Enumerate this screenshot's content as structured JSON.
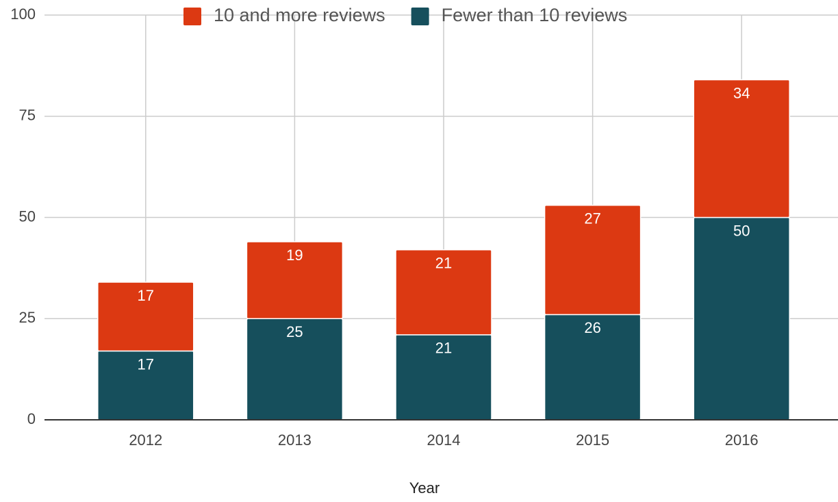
{
  "chart_data": {
    "type": "stacked_bar",
    "categories": [
      "2012",
      "2013",
      "2014",
      "2015",
      "2016"
    ],
    "series": [
      {
        "name": "10 and more reviews",
        "color": "#dc3912",
        "values": [
          17,
          19,
          21,
          27,
          34
        ]
      },
      {
        "name": "Fewer than 10 reviews",
        "color": "#164f5c",
        "values": [
          17,
          25,
          21,
          26,
          50
        ]
      }
    ],
    "ylim": [
      0,
      100
    ],
    "yticks": [
      0,
      25,
      50,
      75,
      100
    ],
    "grid": true,
    "x_label": "Year",
    "legend": "top"
  }
}
